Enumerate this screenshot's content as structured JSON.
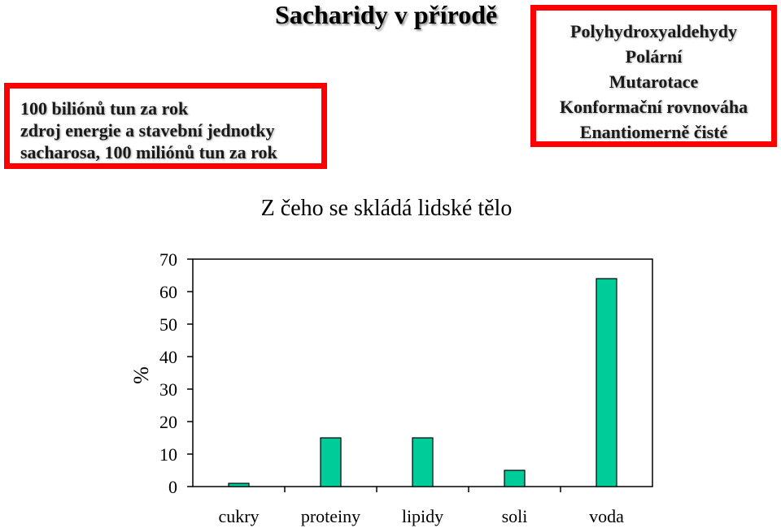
{
  "slide": {
    "title": "Sacharidy v přírodě",
    "left_box": {
      "lines": [
        "100 biliónů tun za rok",
        "zdroj energie a stavební jednotky",
        "sacharosa, 100 miliónů tun za rok"
      ]
    },
    "right_box": {
      "lines": [
        "Polyhydroxyaldehydy",
        "Polární",
        "Mutarotace",
        "Konformační rovnováha",
        "Enantiomerně čisté"
      ]
    },
    "accent_color": "#ff0000"
  },
  "chart_data": {
    "type": "bar",
    "title": "Z čeho se skládá lidské tělo",
    "xlabel": "",
    "ylabel": "%",
    "categories": [
      "cukry",
      "proteiny",
      "lipidy",
      "soli",
      "voda"
    ],
    "values": [
      1,
      15,
      15,
      5,
      64
    ],
    "yticks": [
      0,
      10,
      20,
      30,
      40,
      50,
      60,
      70
    ],
    "ylim": [
      0,
      70
    ],
    "grid": false,
    "legend": "none",
    "bar_color": "#00cc99"
  }
}
